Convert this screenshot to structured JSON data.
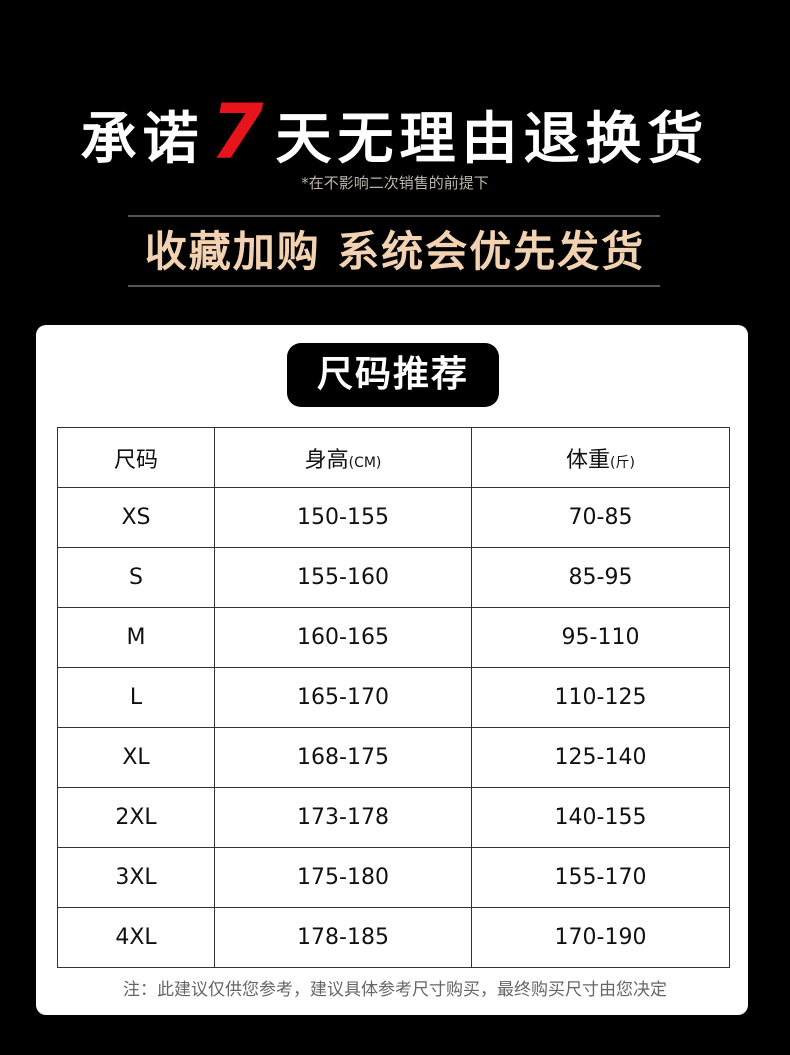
{
  "header": {
    "prefix": "承诺",
    "number": "7",
    "suffix": "天无理由退换货",
    "subtitle": "*在不影响二次销售的前提下",
    "promo": "收藏加购 系统会优先发货"
  },
  "chart": {
    "title": "尺码推荐",
    "columns": [
      {
        "label": "尺码",
        "unit": ""
      },
      {
        "label": "身高",
        "unit": "(CM)"
      },
      {
        "label": "体重",
        "unit": "(斤)"
      }
    ],
    "rows": [
      [
        "XS",
        "150-155",
        "70-85"
      ],
      [
        "S",
        "155-160",
        "85-95"
      ],
      [
        "M",
        "160-165",
        "95-110"
      ],
      [
        "L",
        "165-170",
        "110-125"
      ],
      [
        "XL",
        "168-175",
        "125-140"
      ],
      [
        "2XL",
        "173-178",
        "140-155"
      ],
      [
        "3XL",
        "175-180",
        "155-170"
      ],
      [
        "4XL",
        "178-185",
        "170-190"
      ]
    ],
    "note": "注：此建议仅供您参考，建议具体参考尺寸购买，最终购买尺寸由您决定"
  },
  "colors": {
    "accent": "#e8141b",
    "promo": "#f2d2b0"
  }
}
